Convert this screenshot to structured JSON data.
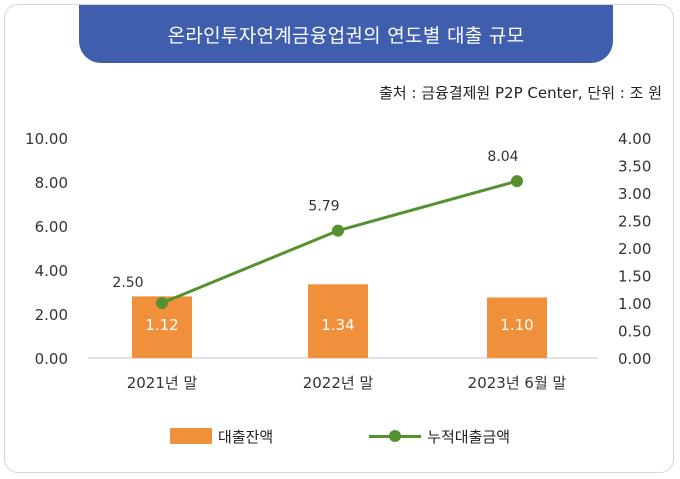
{
  "title": "온라인투자연계금융업권의 연도별 대출 규모",
  "source": "출처 : 금융결제원 P2P Center, 단위 : 조 원",
  "colors": {
    "title_bg": "#3f5fae",
    "bar": "#f0903a",
    "line": "#549130"
  },
  "chart_data": {
    "type": "bar",
    "categories": [
      "2021년 말",
      "2022년 말",
      "2023년 6월 말"
    ],
    "series": [
      {
        "name": "대출잔액",
        "type": "bar",
        "axis": "right",
        "values": [
          1.12,
          1.34,
          1.1
        ],
        "labels": [
          "1.12",
          "1.34",
          "1.10"
        ]
      },
      {
        "name": "누적대출금액",
        "type": "line",
        "axis": "left",
        "values": [
          2.5,
          5.79,
          8.04
        ],
        "labels": [
          "2.50",
          "5.79",
          "8.04"
        ]
      }
    ],
    "left_axis": {
      "ylim": [
        0,
        10
      ],
      "ticks": [
        "0.00",
        "2.00",
        "4.00",
        "6.00",
        "8.00",
        "10.00"
      ]
    },
    "right_axis": {
      "ylim": [
        0,
        4
      ],
      "ticks": [
        "0.00",
        "0.50",
        "1.00",
        "1.50",
        "2.00",
        "2.50",
        "3.00",
        "3.50",
        "4.00"
      ]
    },
    "legend_position": "bottom",
    "grid": false
  }
}
